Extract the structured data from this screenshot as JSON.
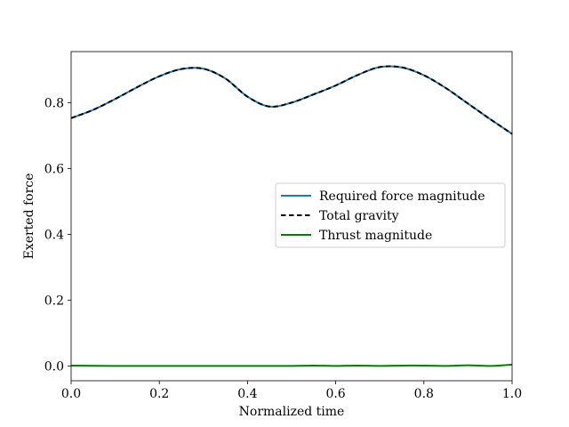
{
  "chart_data": {
    "type": "line",
    "title": "",
    "xlabel": "Normalized time",
    "ylabel": "Exerted force",
    "xlim": [
      0.0,
      1.0
    ],
    "ylim": [
      -0.045,
      0.955
    ],
    "x_ticks": [
      0.0,
      0.2,
      0.4,
      0.6,
      0.8,
      1.0
    ],
    "x_tick_labels": [
      "0.0",
      "0.2",
      "0.4",
      "0.6",
      "0.8",
      "1.0"
    ],
    "y_ticks": [
      0.0,
      0.2,
      0.4,
      0.6,
      0.8
    ],
    "y_tick_labels": [
      "0.0",
      "0.2",
      "0.4",
      "0.6",
      "0.8"
    ],
    "grid": false,
    "legend_position": "center-right",
    "series": [
      {
        "name": "Required force magnitude",
        "color": "#1f77b4",
        "style": "solid",
        "x": [
          0.0,
          0.05,
          0.1,
          0.15,
          0.2,
          0.25,
          0.3,
          0.35,
          0.4,
          0.45,
          0.5,
          0.55,
          0.6,
          0.65,
          0.7,
          0.75,
          0.8,
          0.85,
          0.9,
          0.95,
          1.0
        ],
        "y": [
          0.753,
          0.778,
          0.811,
          0.847,
          0.88,
          0.902,
          0.903,
          0.873,
          0.818,
          0.788,
          0.8,
          0.825,
          0.852,
          0.884,
          0.908,
          0.907,
          0.883,
          0.844,
          0.797,
          0.75,
          0.705
        ]
      },
      {
        "name": "Total gravity",
        "color": "#000000",
        "style": "dashed",
        "x": [
          0.0,
          0.05,
          0.1,
          0.15,
          0.2,
          0.25,
          0.3,
          0.35,
          0.4,
          0.45,
          0.5,
          0.55,
          0.6,
          0.65,
          0.7,
          0.75,
          0.8,
          0.85,
          0.9,
          0.95,
          1.0
        ],
        "y": [
          0.753,
          0.778,
          0.811,
          0.847,
          0.88,
          0.902,
          0.903,
          0.873,
          0.818,
          0.788,
          0.8,
          0.825,
          0.852,
          0.884,
          0.908,
          0.907,
          0.883,
          0.844,
          0.797,
          0.75,
          0.705
        ]
      },
      {
        "name": "Thrust magnitude",
        "color": "#008000",
        "style": "solid",
        "x": [
          0.0,
          0.1,
          0.2,
          0.3,
          0.4,
          0.5,
          0.55,
          0.6,
          0.65,
          0.7,
          0.75,
          0.8,
          0.85,
          0.9,
          0.95,
          1.0
        ],
        "y": [
          0.001,
          0.0,
          0.0,
          0.0,
          0.0,
          0.0,
          0.001,
          0.0,
          0.001,
          0.0,
          0.001,
          0.001,
          0.0,
          0.002,
          0.0,
          0.004
        ]
      }
    ]
  }
}
